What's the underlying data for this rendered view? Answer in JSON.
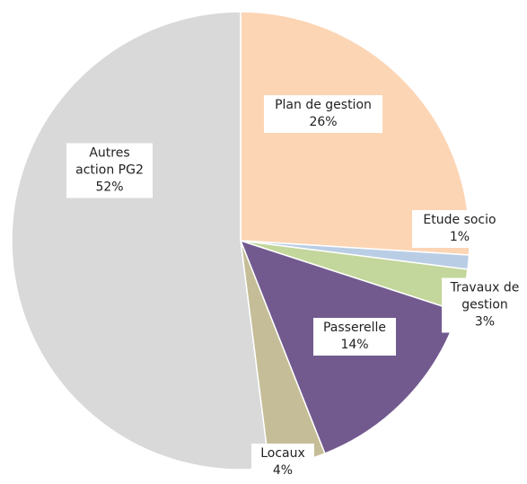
{
  "chart_data": {
    "type": "pie",
    "categories": [
      "Plan de gestion",
      "Etude socio",
      "Travaux de gestion",
      "Passerelle",
      "Locaux",
      "Autres action PG2"
    ],
    "values": [
      26,
      1,
      3,
      14,
      4,
      52
    ],
    "value_labels": [
      "26%",
      "1%",
      "3%",
      "14%",
      "4%",
      "52%"
    ],
    "colors": [
      "#fcd5b5",
      "#b9cde5",
      "#c3d69b",
      "#725a8f",
      "#c4bd97",
      "#d9d9d9"
    ]
  }
}
